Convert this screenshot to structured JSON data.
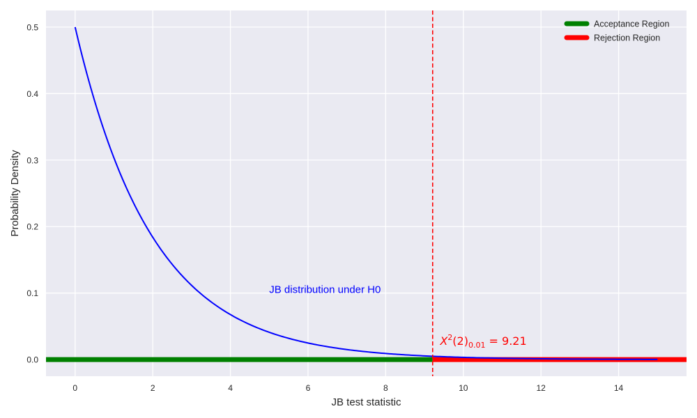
{
  "chart_data": {
    "type": "line",
    "xlabel": "JB test statistic",
    "ylabel": "Probability Density",
    "xlim": [
      -0.75,
      15.75
    ],
    "ylim": [
      -0.025,
      0.525
    ],
    "xticks": [
      0,
      2,
      4,
      6,
      8,
      10,
      12,
      14
    ],
    "yticks": [
      0.0,
      0.1,
      0.2,
      0.3,
      0.4,
      0.5
    ],
    "xtick_labels": [
      "0",
      "2",
      "4",
      "6",
      "8",
      "10",
      "12",
      "14"
    ],
    "ytick_labels": [
      "0.0",
      "0.1",
      "0.2",
      "0.3",
      "0.4",
      "0.5"
    ],
    "grid": true,
    "background": "#EAEAF2",
    "density_curve": {
      "distribution": "chi-square, df = 2",
      "x_range": [
        0,
        15
      ],
      "color": "#0000FF",
      "points": [
        [
          0,
          0.5
        ],
        [
          1,
          0.303
        ],
        [
          2,
          0.184
        ],
        [
          3,
          0.112
        ],
        [
          4,
          0.068
        ],
        [
          5,
          0.041
        ],
        [
          6,
          0.025
        ],
        [
          7,
          0.015
        ],
        [
          8,
          0.009
        ],
        [
          9,
          0.006
        ],
        [
          10,
          0.003
        ],
        [
          11,
          0.002
        ],
        [
          12,
          0.001
        ],
        [
          13,
          0.001
        ],
        [
          14,
          0.0005
        ],
        [
          15,
          0.0003
        ]
      ]
    },
    "critical_value": {
      "x": 9.21,
      "color": "#FF0000",
      "label_base": "X",
      "label_sup": "2",
      "label_paren": "(2)",
      "label_sub": "0.01",
      "label_eq": " = 9.21",
      "label_pos": [
        9.4,
        0.022
      ]
    },
    "regions": [
      {
        "name": "Acceptance Region",
        "from": -0.75,
        "to": 9.21,
        "y": 0,
        "color": "#008000"
      },
      {
        "name": "Rejection Region",
        "from": 9.21,
        "to": 15.75,
        "y": 0,
        "color": "#FF0000"
      }
    ],
    "annotations": [
      {
        "text": "JB distribution under H0",
        "x": 5.0,
        "y": 0.1,
        "color": "#0000FF"
      }
    ],
    "legend": {
      "placement": "upper-right",
      "entries": [
        {
          "label": "Acceptance Region",
          "color": "#008000"
        },
        {
          "label": "Rejection Region",
          "color": "#FF0000"
        }
      ]
    }
  }
}
